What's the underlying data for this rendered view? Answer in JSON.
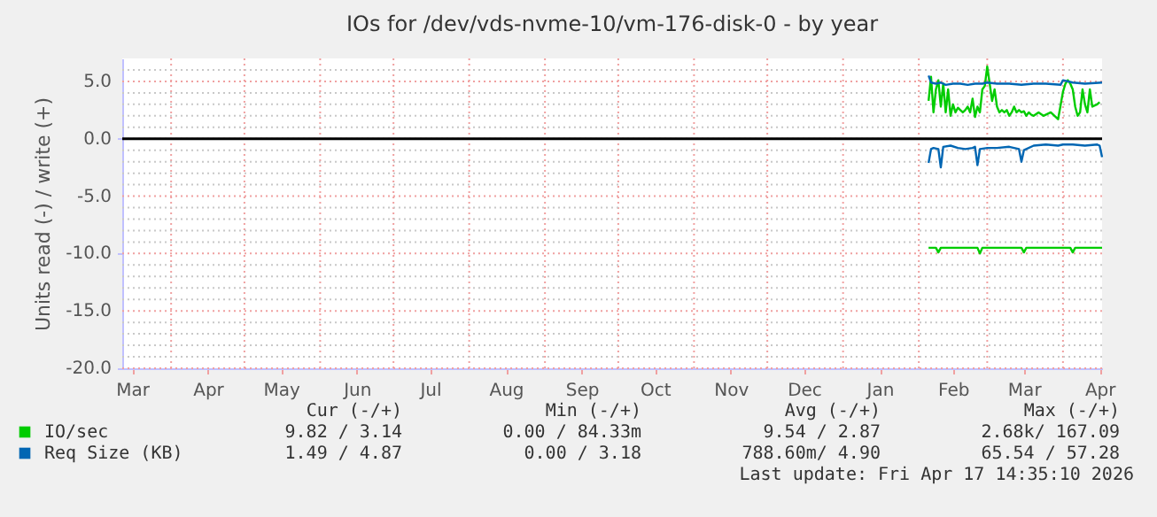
{
  "chart_data": {
    "type": "line",
    "title": "IOs for /dev/vds-nvme-10/vm-176-disk-0 - by year",
    "ylabel": "Units read (-) / write (+)",
    "xlim": [
      "2025-03-12",
      "2026-04-17"
    ],
    "xticks": [
      {
        "value": "2025-03-16",
        "label": "Mar"
      },
      {
        "value": "2025-04-01",
        "label": null
      },
      {
        "value": "2025-04-16",
        "label": "Apr"
      },
      {
        "value": "2025-05-01",
        "label": null
      },
      {
        "value": "2025-05-16",
        "label": "May"
      },
      {
        "value": "2025-06-01",
        "label": null
      },
      {
        "value": "2025-06-16",
        "label": "Jun"
      },
      {
        "value": "2025-07-01",
        "label": null
      },
      {
        "value": "2025-07-16",
        "label": "Jul"
      },
      {
        "value": "2025-08-01",
        "label": null
      },
      {
        "value": "2025-08-16",
        "label": "Aug"
      },
      {
        "value": "2025-09-01",
        "label": null
      },
      {
        "value": "2025-09-16",
        "label": "Sep"
      },
      {
        "value": "2025-10-01",
        "label": null
      },
      {
        "value": "2025-10-16",
        "label": "Oct"
      },
      {
        "value": "2025-11-01",
        "label": null
      },
      {
        "value": "2025-11-16",
        "label": "Nov"
      },
      {
        "value": "2025-12-01",
        "label": null
      },
      {
        "value": "2025-12-16",
        "label": "Dec"
      },
      {
        "value": "2026-01-01",
        "label": null
      },
      {
        "value": "2026-01-16",
        "label": "Jan"
      },
      {
        "value": "2026-02-01",
        "label": null
      },
      {
        "value": "2026-02-15",
        "label": "Feb"
      },
      {
        "value": "2026-03-01",
        "label": null
      },
      {
        "value": "2026-03-16",
        "label": "Mar"
      },
      {
        "value": "2026-04-01",
        "label": null
      },
      {
        "value": "2026-04-16",
        "label": "Apr"
      }
    ],
    "ylim": [
      -20,
      7
    ],
    "yticks": [
      {
        "value": -20,
        "label": "-20.0"
      },
      {
        "value": -19,
        "label": null
      },
      {
        "value": -18,
        "label": null
      },
      {
        "value": -17,
        "label": null
      },
      {
        "value": -16,
        "label": null
      },
      {
        "value": -15,
        "label": "-15.0"
      },
      {
        "value": -14,
        "label": null
      },
      {
        "value": -13,
        "label": null
      },
      {
        "value": -12,
        "label": null
      },
      {
        "value": -11,
        "label": null
      },
      {
        "value": -10,
        "label": "-10.0"
      },
      {
        "value": -9,
        "label": null
      },
      {
        "value": -8,
        "label": null
      },
      {
        "value": -7,
        "label": null
      },
      {
        "value": -6,
        "label": null
      },
      {
        "value": -5,
        "label": "-5.0"
      },
      {
        "value": -4,
        "label": null
      },
      {
        "value": -3,
        "label": null
      },
      {
        "value": -2,
        "label": null
      },
      {
        "value": -1,
        "label": null
      },
      {
        "value": 0,
        "label": "0.0"
      },
      {
        "value": 1,
        "label": null
      },
      {
        "value": 2,
        "label": null
      },
      {
        "value": 3,
        "label": null
      },
      {
        "value": 4,
        "label": null
      },
      {
        "value": 5,
        "label": "5.0"
      },
      {
        "value": 6,
        "label": null
      }
    ],
    "grid": true,
    "legend": "bottom left",
    "ref_lines": [
      {
        "axis": "y",
        "value": 0,
        "label": null,
        "color": "#000000"
      }
    ],
    "series": [
      {
        "name": "IO/sec",
        "color": "#00cc00",
        "x": [
          "2026-02-05",
          "2026-02-06",
          "2026-02-07",
          "2026-02-08",
          "2026-02-09",
          "2026-02-10",
          "2026-02-11",
          "2026-02-12",
          "2026-02-13",
          "2026-02-14",
          "2026-02-15",
          "2026-02-16",
          "2026-02-17",
          "2026-02-18",
          "2026-02-19",
          "2026-02-20",
          "2026-02-21",
          "2026-02-22",
          "2026-02-23",
          "2026-02-24",
          "2026-02-25",
          "2026-02-26",
          "2026-02-27",
          "2026-02-28",
          "2026-03-01",
          "2026-03-02",
          "2026-03-03",
          "2026-03-04",
          "2026-03-05",
          "2026-03-06",
          "2026-03-07",
          "2026-03-08",
          "2026-03-09",
          "2026-03-10",
          "2026-03-11",
          "2026-03-12",
          "2026-03-13",
          "2026-03-14",
          "2026-03-15",
          "2026-03-16",
          "2026-03-17",
          "2026-03-18",
          "2026-03-19",
          "2026-03-20",
          "2026-03-22",
          "2026-03-24",
          "2026-03-27",
          "2026-03-30",
          "2026-04-01",
          "2026-04-02",
          "2026-04-03",
          "2026-04-04",
          "2026-04-05",
          "2026-04-06",
          "2026-04-07",
          "2026-04-08",
          "2026-04-09",
          "2026-04-10",
          "2026-04-11",
          "2026-04-12",
          "2026-04-13",
          "2026-04-15",
          "2026-04-16"
        ],
        "values": [
          3.3,
          5.4,
          2.3,
          4.3,
          5.1,
          2.8,
          4.8,
          2.3,
          4.3,
          2.0,
          3.0,
          2.3,
          2.7,
          2.5,
          2.3,
          2.5,
          2.8,
          2.3,
          3.5,
          1.9,
          2.8,
          2.3,
          4.3,
          4.6,
          6.3,
          4.8,
          3.3,
          4.3,
          2.8,
          2.3,
          2.5,
          2.3,
          2.5,
          2.0,
          2.3,
          2.8,
          2.3,
          2.5,
          2.3,
          2.4,
          2.0,
          2.3,
          2.1,
          2.0,
          2.3,
          2.0,
          2.3,
          1.7,
          4.1,
          4.8,
          5.1,
          4.8,
          4.3,
          2.8,
          2.0,
          2.3,
          4.3,
          3.0,
          2.3,
          4.3,
          2.8,
          3.0,
          3.2
        ]
      },
      {
        "color": "#00cc00",
        "x": [
          "2026-02-05",
          "2026-02-08",
          "2026-02-09",
          "2026-02-10",
          "2026-02-25",
          "2026-02-26",
          "2026-02-27",
          "2026-03-15",
          "2026-03-16",
          "2026-03-17",
          "2026-04-04",
          "2026-04-05",
          "2026-04-06",
          "2026-04-17"
        ],
        "values": [
          -9.5,
          -9.5,
          -9.9,
          -9.5,
          -9.5,
          -10.0,
          -9.5,
          -9.5,
          -9.9,
          -9.5,
          -9.5,
          -9.9,
          -9.5,
          -9.5
        ]
      },
      {
        "name": "Req Size (KB)",
        "color": "#0066b3",
        "x": [
          "2026-02-05",
          "2026-02-06",
          "2026-02-08",
          "2026-02-10",
          "2026-02-12",
          "2026-02-15",
          "2026-02-18",
          "2026-02-21",
          "2026-02-24",
          "2026-02-27",
          "2026-03-01",
          "2026-03-05",
          "2026-03-10",
          "2026-03-15",
          "2026-03-20",
          "2026-03-25",
          "2026-03-31",
          "2026-04-01",
          "2026-04-05",
          "2026-04-10",
          "2026-04-17"
        ],
        "values": [
          5.5,
          4.9,
          4.8,
          4.9,
          4.7,
          4.8,
          4.8,
          4.7,
          4.8,
          4.8,
          4.9,
          4.8,
          4.8,
          4.7,
          4.8,
          4.8,
          4.7,
          5.1,
          4.9,
          4.8,
          4.9
        ]
      },
      {
        "color": "#0066b3",
        "x": [
          "2026-02-05",
          "2026-02-06",
          "2026-02-07",
          "2026-02-09",
          "2026-02-10",
          "2026-02-11",
          "2026-02-14",
          "2026-02-17",
          "2026-02-20",
          "2026-02-23",
          "2026-02-24",
          "2026-02-25",
          "2026-02-26",
          "2026-03-01",
          "2026-03-05",
          "2026-03-10",
          "2026-03-14",
          "2026-03-15",
          "2026-03-16",
          "2026-03-20",
          "2026-03-25",
          "2026-03-30",
          "2026-04-01",
          "2026-04-05",
          "2026-04-10",
          "2026-04-15",
          "2026-04-16",
          "2026-04-17"
        ],
        "values": [
          -2.1,
          -0.9,
          -0.8,
          -0.9,
          -2.5,
          -0.7,
          -0.6,
          -0.8,
          -0.9,
          -0.8,
          -0.7,
          -2.3,
          -0.9,
          -0.8,
          -0.8,
          -0.7,
          -0.9,
          -2.0,
          -1.0,
          -0.6,
          -0.5,
          -0.6,
          -0.5,
          -0.5,
          -0.6,
          -0.5,
          -0.6,
          -1.6
        ]
      }
    ],
    "annotations": [
      "Cur (-/+)",
      "Min (-/+)",
      "Avg (-/+)",
      "Max (-/+)",
      "9.82 / 3.14",
      "0.00 / 84.33m",
      "9.54 / 2.87",
      "2.68k/ 167.09",
      "1.49 / 4.87",
      "0.00 / 3.18",
      "788.60m/ 4.90",
      "65.54 / 57.28",
      "Last update: Fri Apr 17 14:35:10 2026"
    ]
  }
}
